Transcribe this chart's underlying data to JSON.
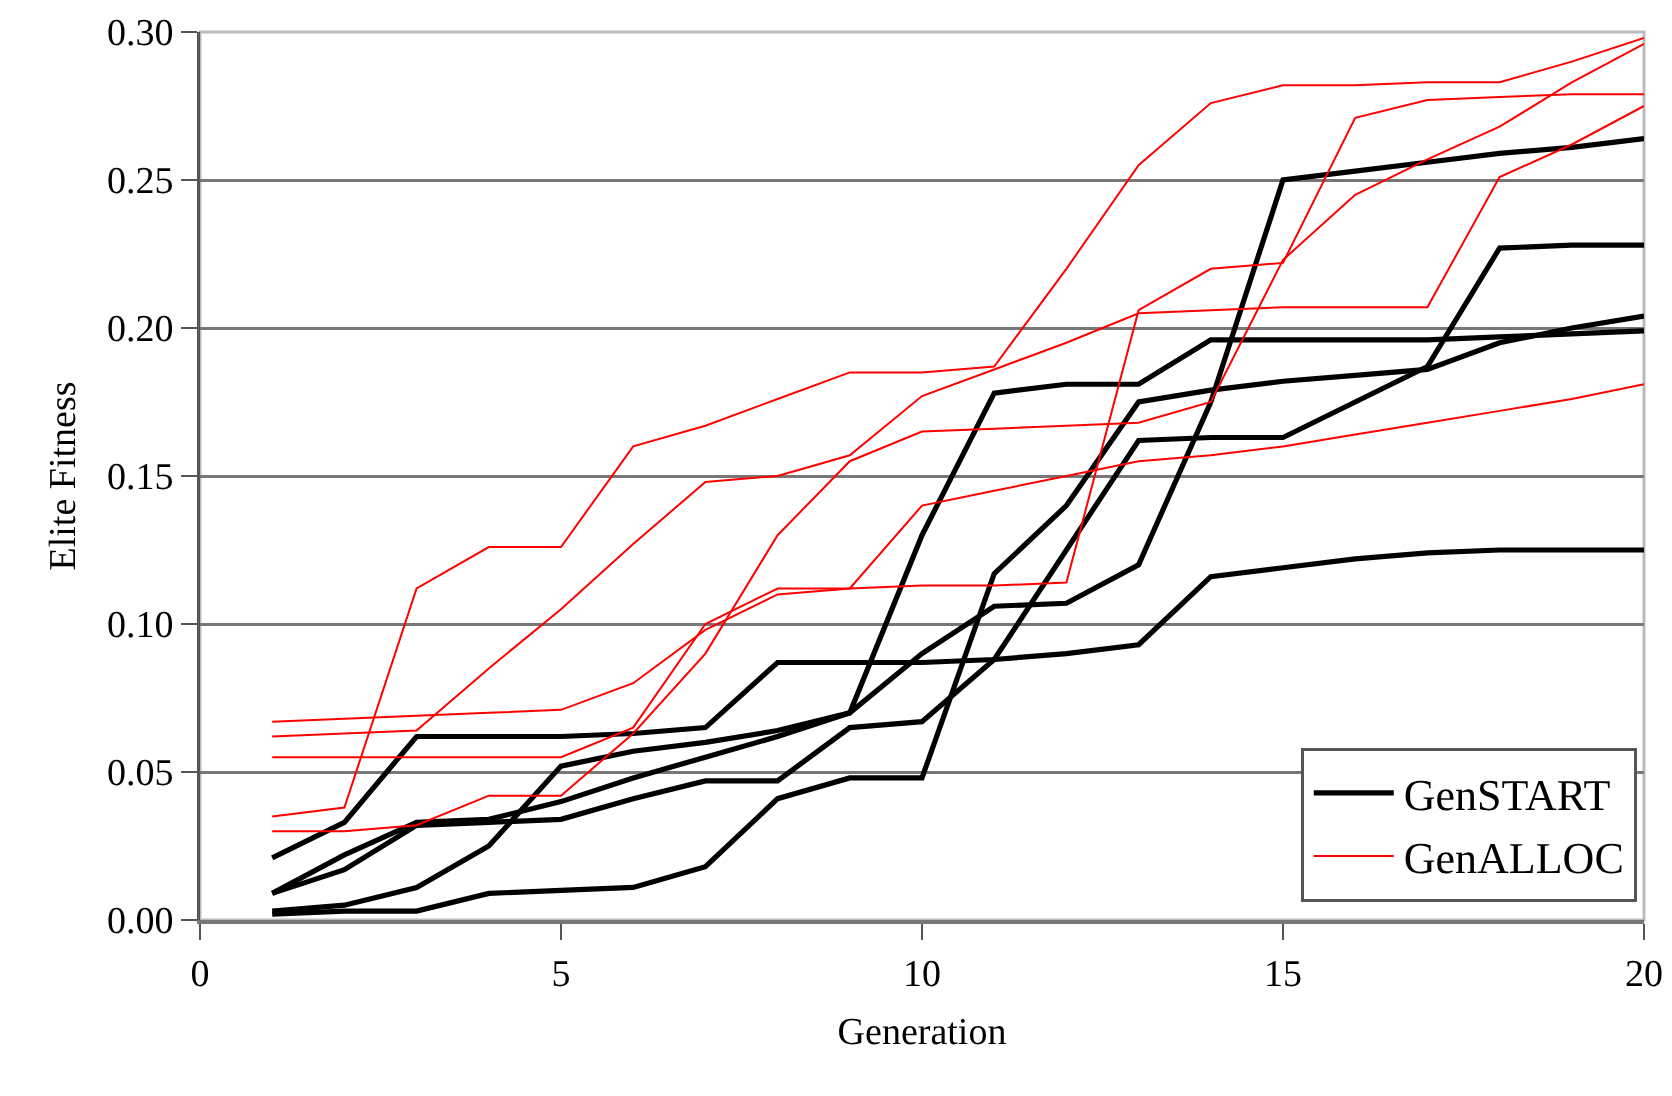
{
  "chart_data": {
    "type": "line",
    "xlabel": "Generation",
    "ylabel": "Elite Fitness",
    "x": [
      1,
      2,
      3,
      4,
      5,
      6,
      7,
      8,
      9,
      10,
      11,
      12,
      13,
      14,
      15,
      16,
      17,
      18,
      19,
      20
    ],
    "xlim": [
      0,
      20
    ],
    "xticks": [
      0,
      5,
      10,
      15,
      20
    ],
    "ylim": [
      0,
      0.3
    ],
    "yticks": [
      {
        "value": 0,
        "label": "0.00"
      },
      {
        "value": 0.05,
        "label": "0.05"
      },
      {
        "value": 0.1,
        "label": "0.10"
      },
      {
        "value": 0.15,
        "label": "0.15"
      },
      {
        "value": 0.2,
        "label": "0.20"
      },
      {
        "value": 0.25,
        "label": "0.25"
      },
      {
        "value": 0.3,
        "label": "0.30"
      }
    ],
    "grid": "y",
    "legend": "bottom right",
    "marker": "none",
    "line_style": "solid",
    "series": [
      {
        "name": "GenSTART",
        "color": "#000000",
        "values": [
          0.021,
          0.033,
          0.062,
          0.062,
          0.062,
          0.063,
          0.065,
          0.087,
          0.087,
          0.087,
          0.088,
          0.09,
          0.093,
          0.116,
          0.119,
          0.122,
          0.124,
          0.125,
          0.125,
          0.125
        ]
      },
      {
        "color": "#000000",
        "values": [
          0.009,
          0.022,
          0.033,
          0.034,
          0.04,
          0.048,
          0.055,
          0.062,
          0.07,
          0.13,
          0.178,
          0.181,
          0.181,
          0.196,
          0.196,
          0.196,
          0.196,
          0.197,
          0.198,
          0.199
        ]
      },
      {
        "color": "#000000",
        "values": [
          0.009,
          0.017,
          0.032,
          0.033,
          0.034,
          0.041,
          0.047,
          0.047,
          0.065,
          0.067,
          0.088,
          0.125,
          0.162,
          0.163,
          0.163,
          0.175,
          0.187,
          0.227,
          0.228,
          0.228
        ]
      },
      {
        "color": "#000000",
        "values": [
          0.003,
          0.005,
          0.011,
          0.025,
          0.052,
          0.057,
          0.06,
          0.064,
          0.07,
          0.09,
          0.106,
          0.107,
          0.12,
          0.175,
          0.25,
          0.253,
          0.256,
          0.259,
          0.261,
          0.264
        ]
      },
      {
        "color": "#000000",
        "values": [
          0.002,
          0.003,
          0.003,
          0.009,
          0.01,
          0.011,
          0.018,
          0.041,
          0.048,
          0.048,
          0.117,
          0.14,
          0.175,
          0.179,
          0.182,
          0.184,
          0.186,
          0.195,
          0.2,
          0.204
        ]
      },
      {
        "name": "GenALLOC",
        "color": "#ff0000",
        "values": [
          0.035,
          0.038,
          0.112,
          0.126,
          0.126,
          0.16,
          0.167,
          0.176,
          0.185,
          0.185,
          0.187,
          0.22,
          0.255,
          0.276,
          0.282,
          0.282,
          0.283,
          0.283,
          0.29,
          0.298
        ]
      },
      {
        "color": "#ff0000",
        "values": [
          0.062,
          0.063,
          0.064,
          0.085,
          0.105,
          0.127,
          0.148,
          0.15,
          0.157,
          0.177,
          0.186,
          0.195,
          0.205,
          0.206,
          0.207,
          0.207,
          0.207,
          0.251,
          0.262,
          0.275
        ]
      },
      {
        "color": "#ff0000",
        "values": [
          0.067,
          0.068,
          0.069,
          0.07,
          0.071,
          0.08,
          0.098,
          0.11,
          0.112,
          0.14,
          0.145,
          0.15,
          0.155,
          0.157,
          0.16,
          0.164,
          0.168,
          0.172,
          0.176,
          0.181
        ]
      },
      {
        "color": "#ff0000",
        "values": [
          0.055,
          0.055,
          0.055,
          0.055,
          0.055,
          0.065,
          0.1,
          0.112,
          0.112,
          0.113,
          0.113,
          0.114,
          0.206,
          0.22,
          0.222,
          0.271,
          0.277,
          0.278,
          0.279,
          0.279
        ]
      },
      {
        "color": "#ff0000",
        "values": [
          0.03,
          0.03,
          0.032,
          0.042,
          0.042,
          0.063,
          0.09,
          0.13,
          0.155,
          0.165,
          0.166,
          0.167,
          0.168,
          0.175,
          0.223,
          0.245,
          0.257,
          0.268,
          0.283,
          0.296
        ]
      }
    ]
  }
}
